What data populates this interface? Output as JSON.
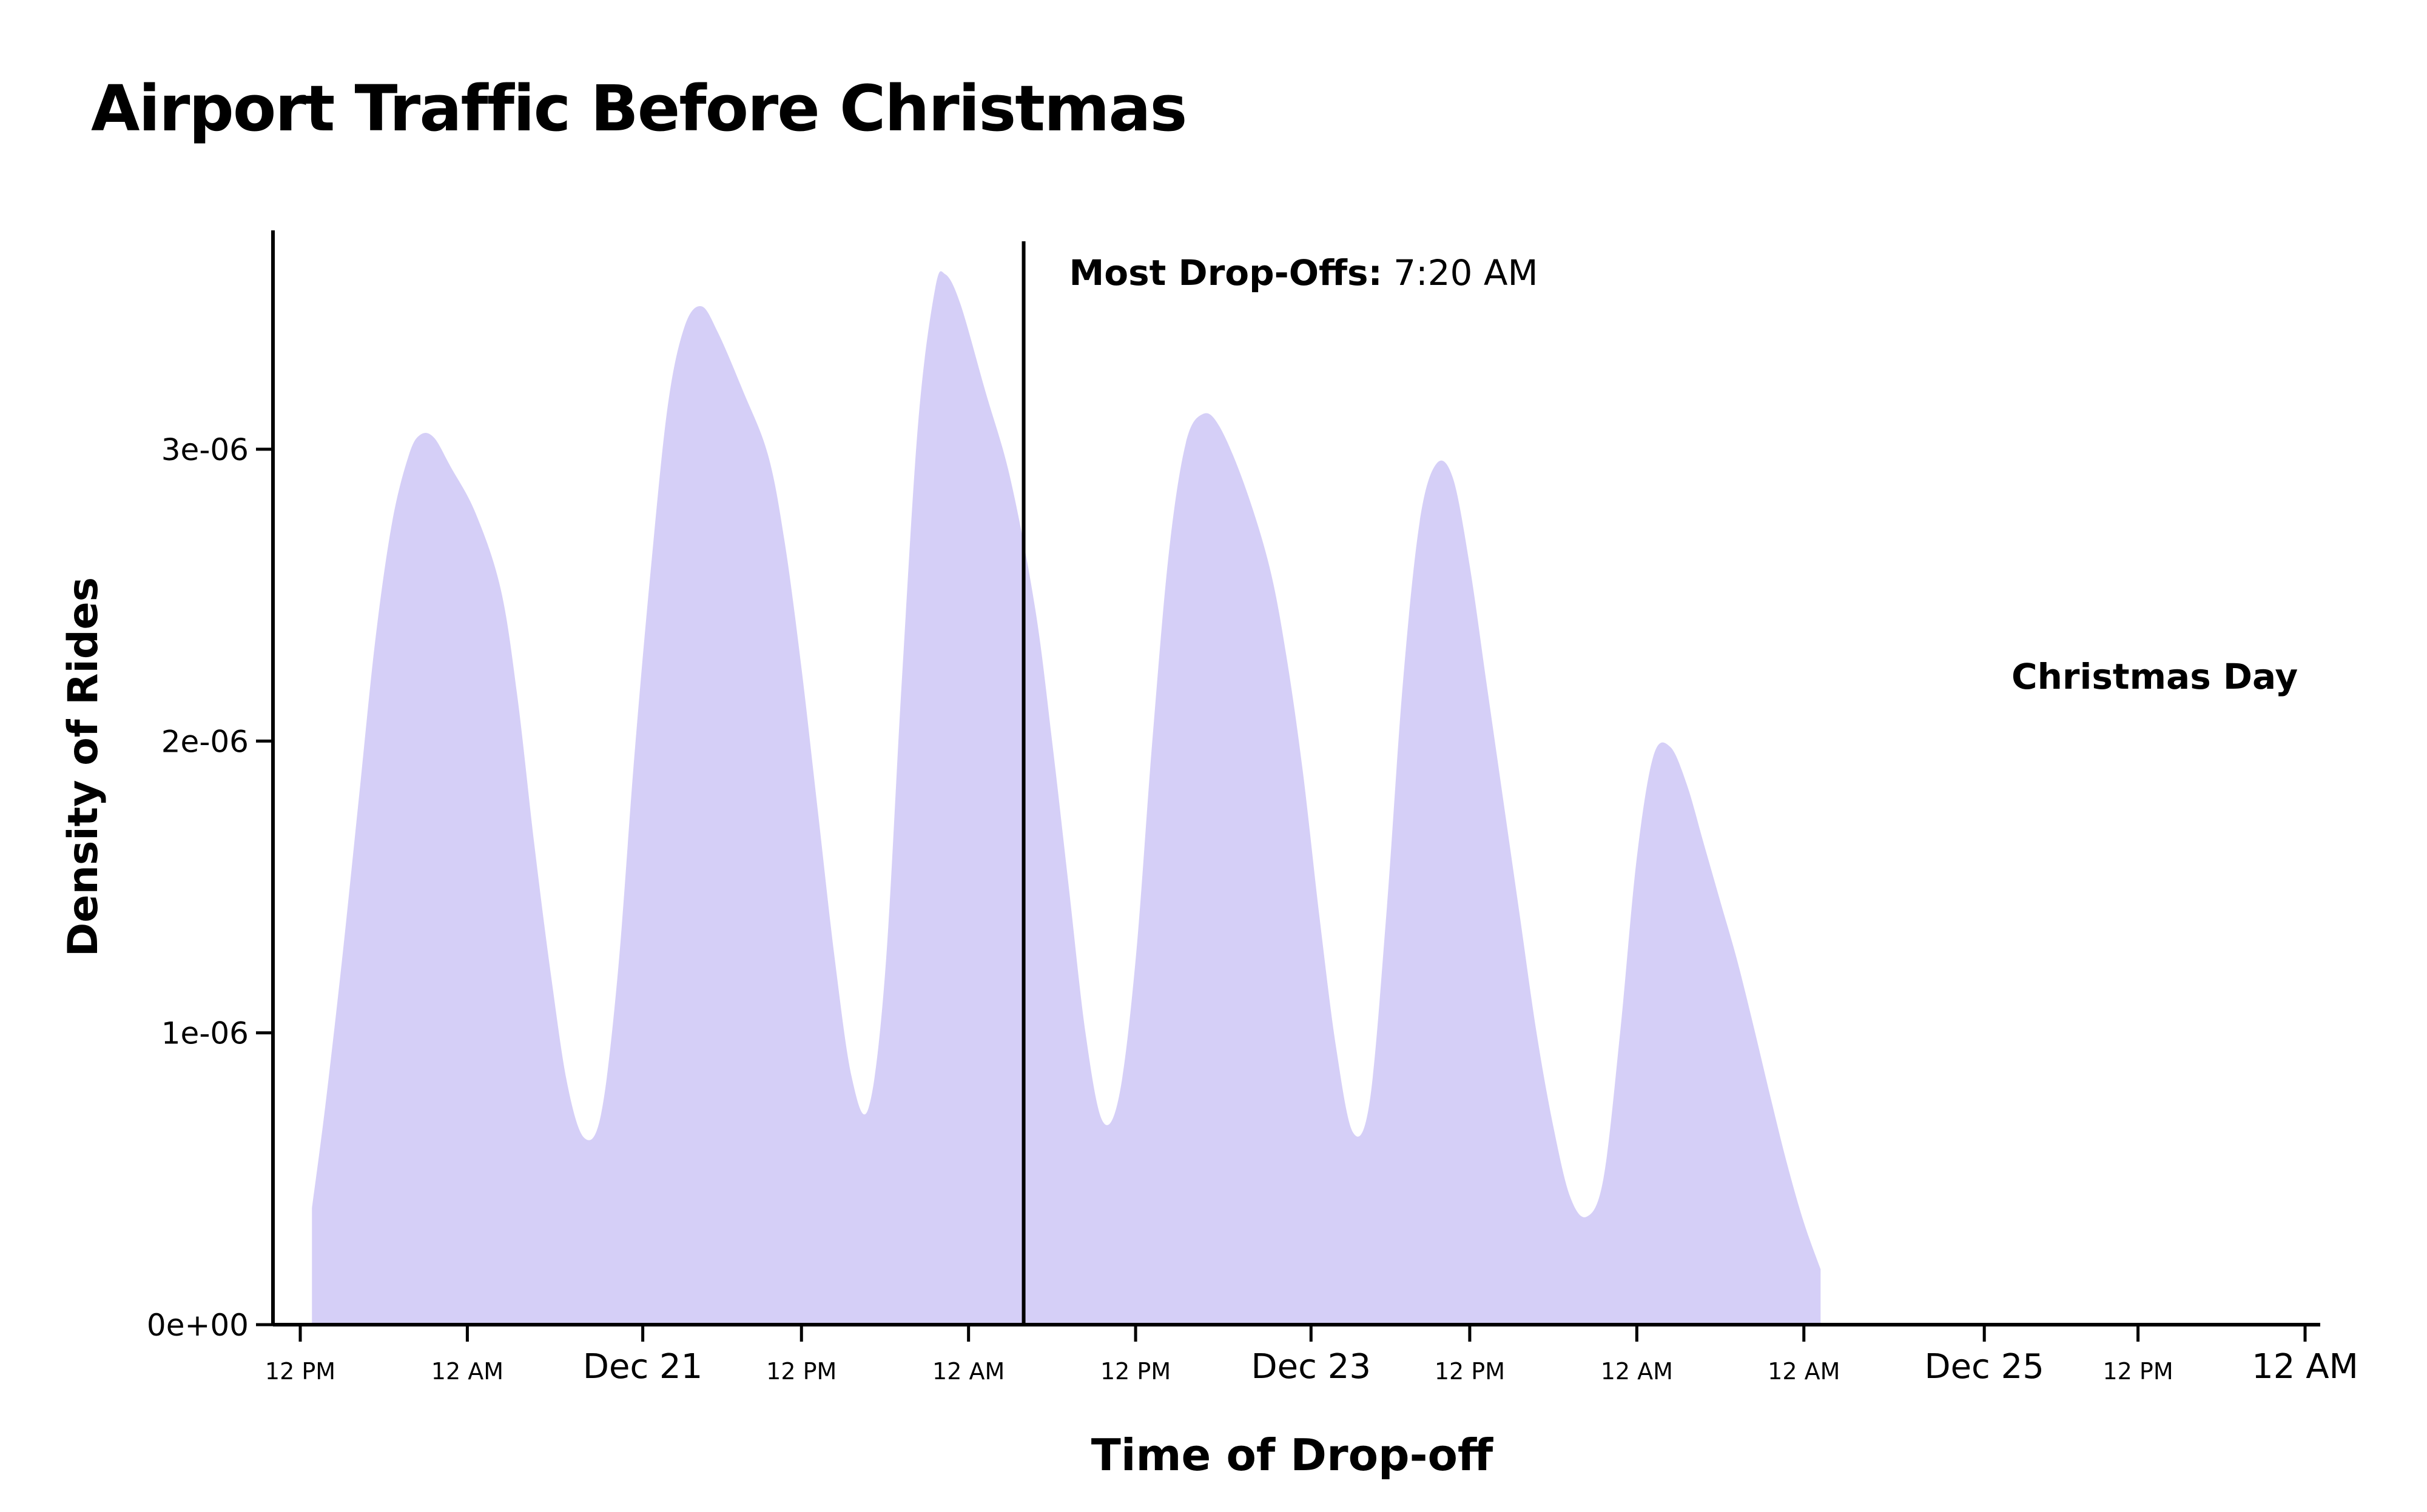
{
  "chart_data": {
    "type": "area",
    "title": "Airport Traffic Before Christmas",
    "xlabel": "Time of Drop-off",
    "ylabel": "Density of Rides",
    "fill_color": "#d5cff7",
    "axis_color": "#000000",
    "x_unit": "hours since Dec 20 12 PM",
    "xlim": [
      0,
      120
    ],
    "ylim": [
      0,
      3.75e-06
    ],
    "y_ticks": [
      {
        "value": 0,
        "label": "0e+00"
      },
      {
        "value": 1e-06,
        "label": "1e-06"
      },
      {
        "value": 2e-06,
        "label": "2e-06"
      },
      {
        "value": 3e-06,
        "label": "3e-06"
      }
    ],
    "x_ticks": [
      {
        "value": 0,
        "label": "12 PM",
        "major": false
      },
      {
        "value": 10,
        "label": "12 AM",
        "major": false
      },
      {
        "value": 20.5,
        "label": "Dec 21",
        "major": true
      },
      {
        "value": 30,
        "label": "12 PM",
        "major": false
      },
      {
        "value": 40,
        "label": "12 AM",
        "major": false
      },
      {
        "value": 50,
        "label": "12 PM",
        "major": false
      },
      {
        "value": 60.5,
        "label": "Dec 23",
        "major": true
      },
      {
        "value": 70,
        "label": "12 PM",
        "major": false
      },
      {
        "value": 80,
        "label": "12 AM",
        "major": false
      },
      {
        "value": 90,
        "label": "12 AM",
        "major": false
      },
      {
        "value": 100.8,
        "label": "Dec 25",
        "major": true
      },
      {
        "value": 110,
        "label": "12 PM",
        "major": false
      },
      {
        "value": 120,
        "label": "12 AM",
        "major": true
      }
    ],
    "points": [
      [
        0.7,
        4e-07
      ],
      [
        1.5,
        7.5e-07
      ],
      [
        2.5,
        1.25e-06
      ],
      [
        3.5,
        1.8e-06
      ],
      [
        4.5,
        2.35e-06
      ],
      [
        5.5,
        2.75e-06
      ],
      [
        6.5,
        2.98e-06
      ],
      [
        7.2,
        3.05e-06
      ],
      [
        8,
        3.04e-06
      ],
      [
        9,
        2.94e-06
      ],
      [
        10.5,
        2.78e-06
      ],
      [
        12,
        2.52e-06
      ],
      [
        13,
        2.15e-06
      ],
      [
        14,
        1.65e-06
      ],
      [
        15,
        1.2e-06
      ],
      [
        16,
        8.2e-07
      ],
      [
        17,
        6.4e-07
      ],
      [
        18,
        7.2e-07
      ],
      [
        19,
        1.2e-06
      ],
      [
        20,
        1.95e-06
      ],
      [
        21,
        2.6e-06
      ],
      [
        22,
        3.15e-06
      ],
      [
        23,
        3.42e-06
      ],
      [
        24,
        3.49e-06
      ],
      [
        25,
        3.4e-06
      ],
      [
        26.5,
        3.2e-06
      ],
      [
        28,
        2.98e-06
      ],
      [
        29,
        2.68e-06
      ],
      [
        30,
        2.25e-06
      ],
      [
        31,
        1.75e-06
      ],
      [
        32,
        1.25e-06
      ],
      [
        33,
        8.5e-07
      ],
      [
        34,
        7.4e-07
      ],
      [
        35,
        1.2e-06
      ],
      [
        36,
        2.2e-06
      ],
      [
        37,
        3.1e-06
      ],
      [
        38,
        3.55e-06
      ],
      [
        38.6,
        3.6e-06
      ],
      [
        39.5,
        3.5e-06
      ],
      [
        41,
        3.2e-06
      ],
      [
        42.5,
        2.9e-06
      ],
      [
        44,
        2.45e-06
      ],
      [
        45,
        2e-06
      ],
      [
        46,
        1.5e-06
      ],
      [
        47,
        1e-06
      ],
      [
        48,
        7e-07
      ],
      [
        49,
        7.8e-07
      ],
      [
        50,
        1.25e-06
      ],
      [
        51,
        2e-06
      ],
      [
        52,
        2.65e-06
      ],
      [
        53,
        3.02e-06
      ],
      [
        54,
        3.12e-06
      ],
      [
        55,
        3.08e-06
      ],
      [
        56.5,
        2.88e-06
      ],
      [
        58,
        2.6e-06
      ],
      [
        59,
        2.3e-06
      ],
      [
        60,
        1.9e-06
      ],
      [
        61,
        1.4e-06
      ],
      [
        62,
        9.5e-07
      ],
      [
        63,
        6.6e-07
      ],
      [
        64,
        7.6e-07
      ],
      [
        65,
        1.4e-06
      ],
      [
        66,
        2.2e-06
      ],
      [
        67,
        2.75e-06
      ],
      [
        68,
        2.95e-06
      ],
      [
        69,
        2.9e-06
      ],
      [
        70,
        2.6e-06
      ],
      [
        71,
        2.2e-06
      ],
      [
        72,
        1.8e-06
      ],
      [
        73,
        1.4e-06
      ],
      [
        74,
        1e-06
      ],
      [
        75,
        6.8e-07
      ],
      [
        76,
        4.4e-07
      ],
      [
        77,
        3.7e-07
      ],
      [
        78,
        5e-07
      ],
      [
        79,
        1e-06
      ],
      [
        80,
        1.6e-06
      ],
      [
        81,
        1.95e-06
      ],
      [
        82,
        1.98e-06
      ],
      [
        83,
        1.85e-06
      ],
      [
        84,
        1.65e-06
      ],
      [
        85,
        1.45e-06
      ],
      [
        86,
        1.25e-06
      ],
      [
        87,
        1.02e-06
      ],
      [
        88,
        7.8e-07
      ],
      [
        89,
        5.5e-07
      ],
      [
        90,
        3.5e-07
      ],
      [
        91,
        1.9e-07
      ]
    ],
    "annotations": [
      {
        "bold": "Most Drop-Offs:",
        "text": " 7:20 AM",
        "x": 43.3,
        "role": "peak-line"
      },
      {
        "bold": "Christmas Day",
        "text": "",
        "x": 111.0,
        "y": 2.2e-06,
        "role": "label"
      }
    ]
  }
}
